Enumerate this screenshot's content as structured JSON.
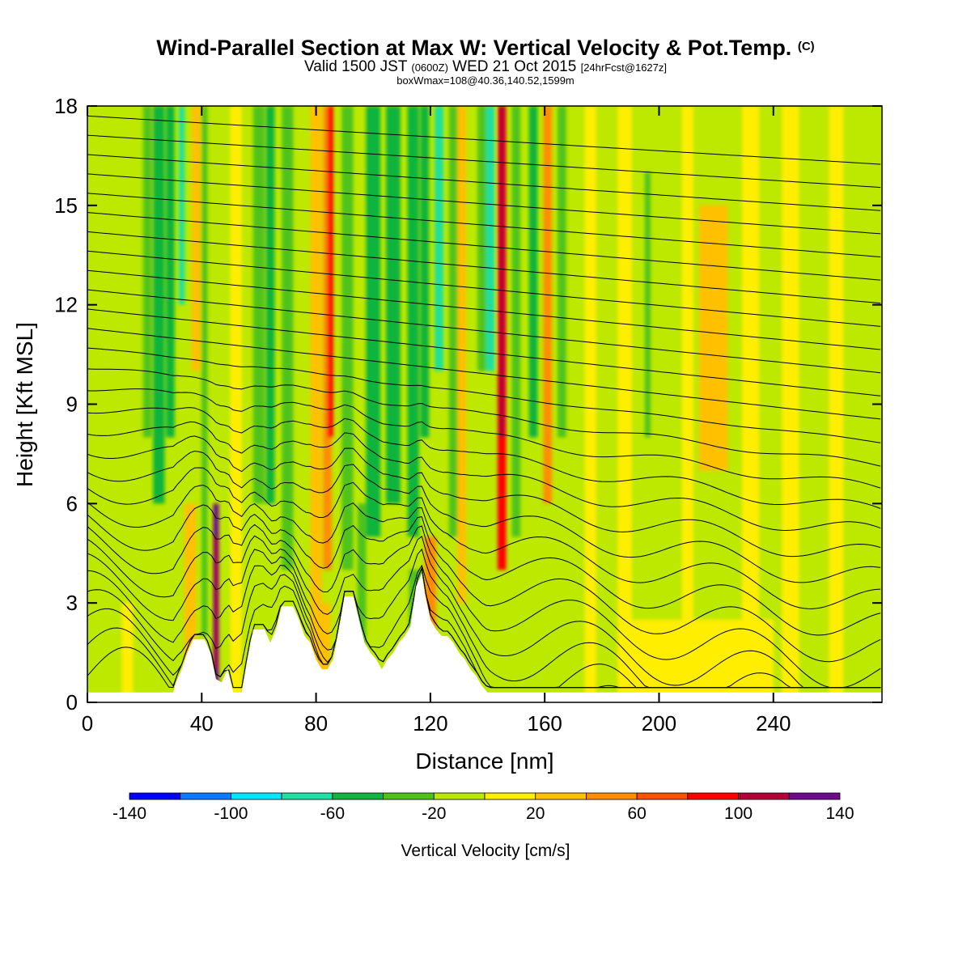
{
  "header": {
    "title": "Wind-Parallel Section at Max W: Vertical Velocity & Pot.Temp.",
    "copyright": "(C)",
    "valid_a": "Valid 1500 JST ",
    "valid_utc": "(0600Z)",
    "valid_b": " WED 21 Oct 2015 ",
    "forecast": "[24hrFcst@1627z]",
    "boxwmax": "boxWmax=108@40.36,140.52,1599m"
  },
  "chart_data": {
    "type": "heatmap",
    "xlabel": "Distance [nm]",
    "ylabel": "Height [Kft MSL]",
    "xlim": [
      0,
      278
    ],
    "ylim": [
      0,
      18
    ],
    "x_ticks": [
      0,
      40,
      80,
      120,
      160,
      200,
      240
    ],
    "y_ticks": [
      0,
      3,
      6,
      9,
      12,
      15,
      18
    ],
    "colorbar": {
      "label": "Vertical Velocity [cm/s]",
      "ticks": [
        -140,
        -100,
        -60,
        -20,
        20,
        60,
        100,
        140
      ],
      "bins": [
        {
          "min": -140,
          "max": -120,
          "color": "#0000ff"
        },
        {
          "min": -120,
          "max": -100,
          "color": "#0a78ff"
        },
        {
          "min": -100,
          "max": -80,
          "color": "#00e6ff"
        },
        {
          "min": -80,
          "max": -60,
          "color": "#1ee0a0"
        },
        {
          "min": -60,
          "max": -40,
          "color": "#11b43c"
        },
        {
          "min": -40,
          "max": -20,
          "color": "#50c31b"
        },
        {
          "min": -20,
          "max": 0,
          "color": "#bde800"
        },
        {
          "min": 0,
          "max": 20,
          "color": "#ffee00"
        },
        {
          "min": 20,
          "max": 40,
          "color": "#ffc000"
        },
        {
          "min": 40,
          "max": 60,
          "color": "#ff8c00"
        },
        {
          "min": 60,
          "max": 80,
          "color": "#ff5000"
        },
        {
          "min": 80,
          "max": 100,
          "color": "#ff0000"
        },
        {
          "min": 100,
          "max": 120,
          "color": "#b40038"
        },
        {
          "min": 120,
          "max": 140,
          "color": "#6e0a8c"
        }
      ]
    },
    "terrain_kft": [
      [
        0,
        0.3
      ],
      [
        30,
        0.3
      ],
      [
        31,
        0.6
      ],
      [
        33,
        1.0
      ],
      [
        35,
        1.5
      ],
      [
        37,
        1.9
      ],
      [
        41,
        1.9
      ],
      [
        43,
        1.5
      ],
      [
        45,
        0.7
      ],
      [
        47,
        0.6
      ],
      [
        49,
        1.0
      ],
      [
        51,
        0.3
      ],
      [
        54,
        0.3
      ],
      [
        56,
        1.3
      ],
      [
        58,
        2.2
      ],
      [
        62,
        2.2
      ],
      [
        64,
        1.8
      ],
      [
        66,
        2.2
      ],
      [
        68,
        2.9
      ],
      [
        72,
        2.9
      ],
      [
        74,
        2.5
      ],
      [
        76,
        2.0
      ],
      [
        78,
        1.8
      ],
      [
        80,
        1.3
      ],
      [
        82,
        1.0
      ],
      [
        84,
        1.0
      ],
      [
        86,
        1.3
      ],
      [
        88,
        2.2
      ],
      [
        90,
        3.2
      ],
      [
        93,
        3.2
      ],
      [
        95,
        2.5
      ],
      [
        97,
        1.8
      ],
      [
        99,
        1.5
      ],
      [
        101,
        1.3
      ],
      [
        103,
        1.0
      ],
      [
        105,
        1.3
      ],
      [
        107,
        1.5
      ],
      [
        109,
        1.8
      ],
      [
        111,
        2.0
      ],
      [
        113,
        2.3
      ],
      [
        115,
        3.5
      ],
      [
        117,
        3.9
      ],
      [
        118,
        3.3
      ],
      [
        120,
        2.5
      ],
      [
        122,
        2.2
      ],
      [
        124,
        2.0
      ],
      [
        126,
        2.0
      ],
      [
        128,
        1.8
      ],
      [
        130,
        1.5
      ],
      [
        132,
        1.3
      ],
      [
        134,
        1.0
      ],
      [
        136,
        0.8
      ],
      [
        138,
        0.5
      ],
      [
        140,
        0.3
      ],
      [
        278,
        0.3
      ]
    ],
    "theta_isentropes": {
      "count": 30,
      "surface_kft": 0.8,
      "top_kft": 17.7
    }
  }
}
